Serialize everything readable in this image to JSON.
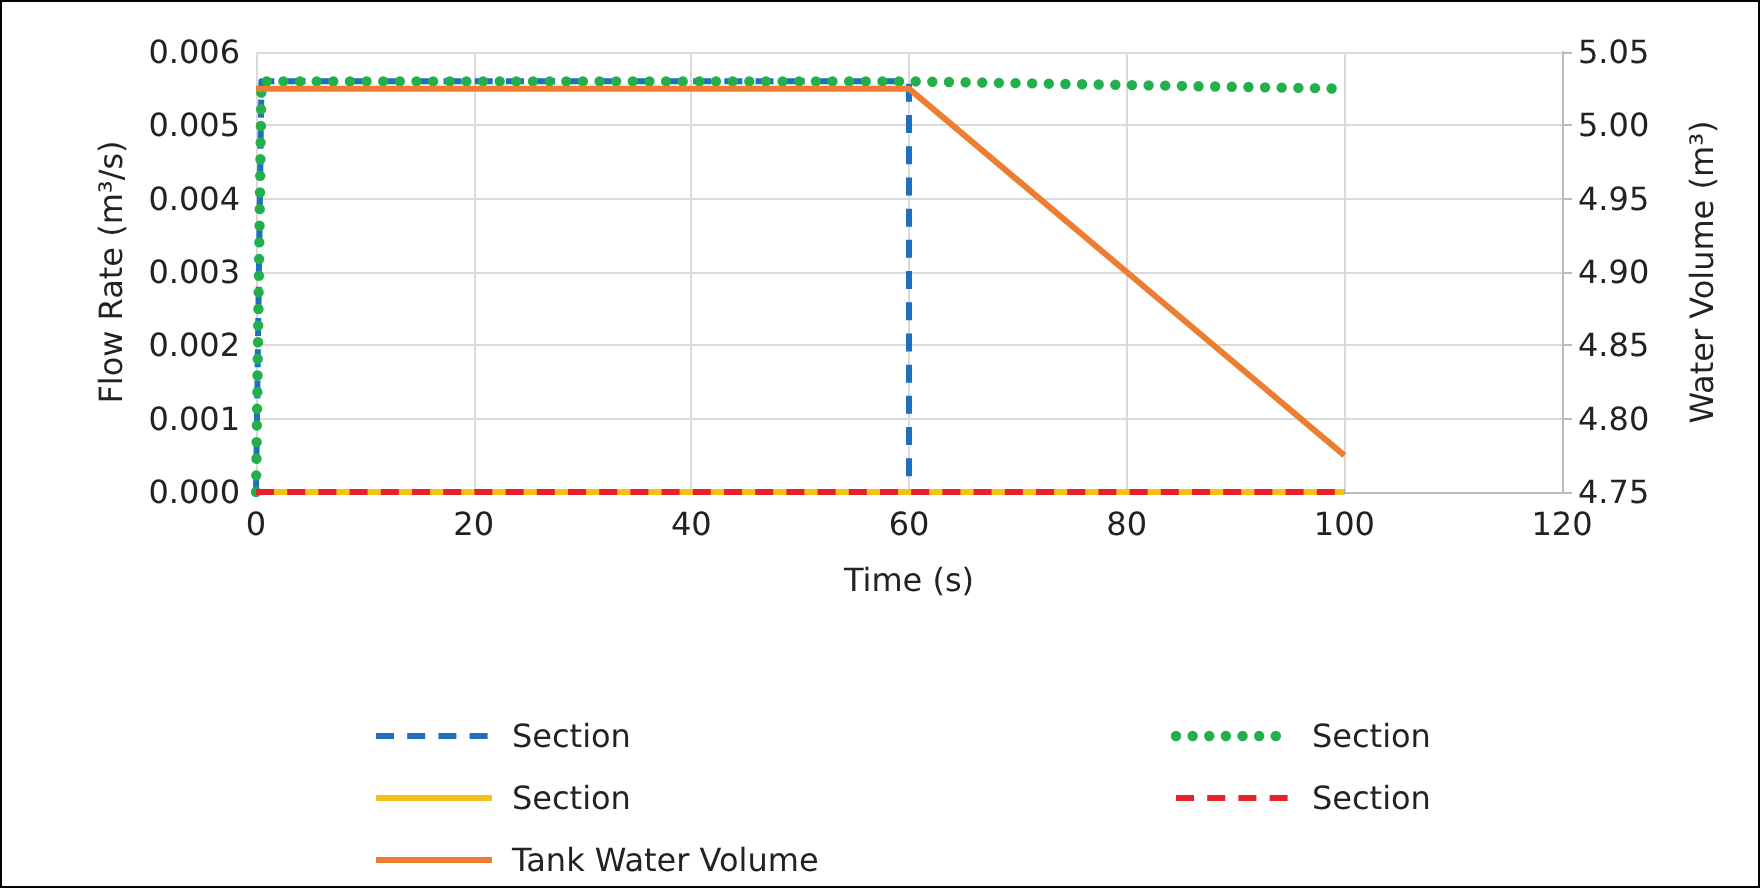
{
  "chart_data": {
    "type": "line",
    "xlabel": "Time (s)",
    "ylabel": "Flow Rate (m³/s)",
    "y2label": "Water Volume (m³)",
    "xlim": [
      0,
      120
    ],
    "xticks": [
      0,
      20,
      40,
      60,
      80,
      100,
      120
    ],
    "ylim": [
      0,
      0.006
    ],
    "yticks": [
      {
        "value": 0,
        "label": "0.000"
      },
      {
        "value": 0.001,
        "label": "0.001"
      },
      {
        "value": 0.002,
        "label": "0.002"
      },
      {
        "value": 0.003,
        "label": "0.003"
      },
      {
        "value": 0.004,
        "label": "0.004"
      },
      {
        "value": 0.005,
        "label": "0.005"
      },
      {
        "value": 0.006,
        "label": "0.006"
      }
    ],
    "y2lim": [
      4.75,
      5.05
    ],
    "y2ticks": [
      {
        "value": 4.75,
        "label": "4.75"
      },
      {
        "value": 4.8,
        "label": "4.80"
      },
      {
        "value": 4.85,
        "label": "4.85"
      },
      {
        "value": 4.9,
        "label": "4.90"
      },
      {
        "value": 4.95,
        "label": "4.95"
      },
      {
        "value": 5.0,
        "label": "5.00"
      },
      {
        "value": 5.05,
        "label": "5.05"
      }
    ],
    "grid": true,
    "legend": "bottom",
    "marker": "none",
    "series": [
      {
        "name": "Section",
        "color": "#1f6fc0",
        "line_style": "dashed",
        "x": [
          0,
          0.5,
          60,
          60,
          100
        ],
        "values": [
          0,
          0.0056,
          0.0056,
          0,
          0
        ]
      },
      {
        "name": "Section",
        "color": "#22b04b",
        "line_style": "dotted",
        "x": [
          0,
          0.5,
          60,
          100
        ],
        "values": [
          0,
          0.0056,
          0.0056,
          0.0055
        ]
      },
      {
        "name": "Section",
        "color": "#f5c218",
        "line_style": "solid",
        "x": [
          0,
          100
        ],
        "values": [
          0,
          0
        ]
      },
      {
        "name": "Section",
        "color": "#e8202a",
        "line_style": "dashed",
        "x": [
          0,
          100
        ],
        "values": [
          0,
          0
        ]
      },
      {
        "name": "Tank Water Volume",
        "color": "#ed7d31",
        "line_style": "solid",
        "axis": "y2",
        "x": [
          0,
          60,
          100
        ],
        "values": [
          5.025,
          5.025,
          4.775
        ]
      }
    ]
  }
}
